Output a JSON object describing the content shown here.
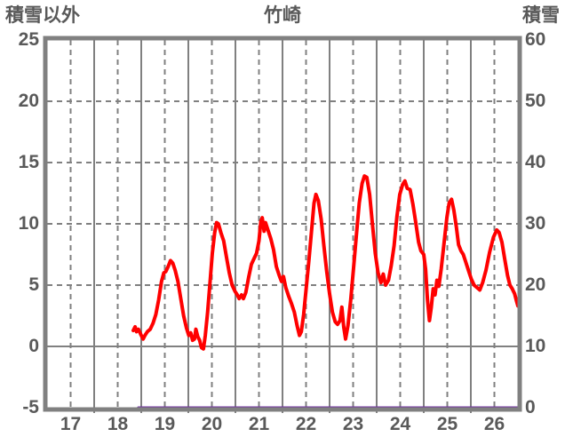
{
  "header": {
    "left_axis_title": "積雪以外",
    "chart_title": "竹崎",
    "right_axis_title": "積雪"
  },
  "colors": {
    "background": "#ffffff",
    "grid": "#808080",
    "border": "#808080",
    "text": "#595959",
    "series_main": "#ff0000",
    "series_snow": "#7030a0"
  },
  "chart_data": {
    "type": "line",
    "title": "竹崎",
    "grid": "on",
    "legend": "none",
    "left_axis": {
      "label": "積雪以外",
      "min": -5,
      "max": 25,
      "ticks": [
        25,
        20,
        15,
        10,
        5,
        0,
        -5
      ],
      "solid_line_at": 0,
      "dashed_lines_at": [
        20,
        15,
        10,
        5
      ]
    },
    "right_axis": {
      "label": "積雪",
      "min": 0,
      "max": 60,
      "ticks": [
        60,
        50,
        40,
        30,
        20,
        10,
        0
      ]
    },
    "x_axis": {
      "min": 17,
      "max": 27,
      "tick_labels": [
        "17",
        "18",
        "19",
        "20",
        "21",
        "22",
        "23",
        "24",
        "25",
        "26"
      ],
      "solid_gridlines_at": [
        18,
        19,
        20,
        21,
        22,
        23,
        24,
        25,
        26
      ],
      "dashed_gridlines_at": [
        17.5,
        18.5,
        19.5,
        20.5,
        21.5,
        22.5,
        23.5,
        24.5,
        25.5,
        26.5
      ]
    },
    "series": [
      {
        "name": "積雪以外",
        "axis": "left",
        "color": "#ff0000",
        "width": 4,
        "points": [
          [
            18.83,
            1.3
          ],
          [
            18.87,
            1.6
          ],
          [
            18.9,
            1.2
          ],
          [
            18.94,
            1.4
          ],
          [
            19.0,
            0.9
          ],
          [
            19.04,
            0.6
          ],
          [
            19.08,
            0.9
          ],
          [
            19.13,
            1.2
          ],
          [
            19.19,
            1.4
          ],
          [
            19.25,
            1.9
          ],
          [
            19.31,
            2.6
          ],
          [
            19.37,
            3.8
          ],
          [
            19.43,
            5.3
          ],
          [
            19.48,
            6.0
          ],
          [
            19.52,
            6.1
          ],
          [
            19.57,
            6.5
          ],
          [
            19.62,
            7.0
          ],
          [
            19.67,
            6.8
          ],
          [
            19.72,
            6.2
          ],
          [
            19.78,
            5.3
          ],
          [
            19.84,
            3.9
          ],
          [
            19.9,
            2.5
          ],
          [
            19.96,
            1.5
          ],
          [
            20.01,
            0.9
          ],
          [
            20.05,
            1.1
          ],
          [
            20.09,
            0.5
          ],
          [
            20.13,
            0.6
          ],
          [
            20.16,
            1.4
          ],
          [
            20.2,
            0.8
          ],
          [
            20.24,
            0.5
          ],
          [
            20.28,
            -0.1
          ],
          [
            20.32,
            -0.2
          ],
          [
            20.36,
            0.9
          ],
          [
            20.41,
            2.8
          ],
          [
            20.46,
            5.2
          ],
          [
            20.51,
            7.6
          ],
          [
            20.56,
            9.3
          ],
          [
            20.6,
            10.1
          ],
          [
            20.64,
            10.0
          ],
          [
            20.69,
            9.3
          ],
          [
            20.75,
            8.6
          ],
          [
            20.81,
            7.3
          ],
          [
            20.87,
            6.0
          ],
          [
            20.93,
            5.0
          ],
          [
            20.99,
            4.5
          ],
          [
            21.04,
            4.2
          ],
          [
            21.08,
            3.9
          ],
          [
            21.13,
            4.2
          ],
          [
            21.17,
            3.9
          ],
          [
            21.22,
            4.4
          ],
          [
            21.28,
            5.6
          ],
          [
            21.34,
            6.7
          ],
          [
            21.4,
            7.2
          ],
          [
            21.45,
            7.6
          ],
          [
            21.5,
            8.6
          ],
          [
            21.54,
            10.2
          ],
          [
            21.57,
            10.5
          ],
          [
            21.61,
            9.4
          ],
          [
            21.64,
            10.1
          ],
          [
            21.69,
            9.5
          ],
          [
            21.75,
            8.8
          ],
          [
            21.81,
            7.9
          ],
          [
            21.87,
            6.5
          ],
          [
            21.93,
            5.8
          ],
          [
            21.98,
            5.3
          ],
          [
            22.02,
            5.7
          ],
          [
            22.07,
            4.8
          ],
          [
            22.13,
            4.1
          ],
          [
            22.19,
            3.5
          ],
          [
            22.25,
            2.8
          ],
          [
            22.31,
            1.7
          ],
          [
            22.36,
            0.9
          ],
          [
            22.4,
            1.2
          ],
          [
            22.45,
            2.6
          ],
          [
            22.5,
            4.6
          ],
          [
            22.56,
            7.0
          ],
          [
            22.62,
            9.6
          ],
          [
            22.67,
            11.7
          ],
          [
            22.71,
            12.4
          ],
          [
            22.76,
            11.9
          ],
          [
            22.82,
            10.4
          ],
          [
            22.88,
            8.2
          ],
          [
            22.94,
            6.1
          ],
          [
            23.0,
            4.3
          ],
          [
            23.06,
            2.8
          ],
          [
            23.12,
            2.0
          ],
          [
            23.17,
            1.8
          ],
          [
            23.22,
            2.1
          ],
          [
            23.26,
            3.2
          ],
          [
            23.3,
            1.6
          ],
          [
            23.34,
            0.6
          ],
          [
            23.39,
            1.7
          ],
          [
            23.45,
            3.8
          ],
          [
            23.51,
            6.4
          ],
          [
            23.57,
            9.1
          ],
          [
            23.63,
            11.7
          ],
          [
            23.69,
            13.3
          ],
          [
            23.74,
            13.9
          ],
          [
            23.79,
            13.8
          ],
          [
            23.85,
            12.4
          ],
          [
            23.91,
            10.0
          ],
          [
            23.97,
            7.6
          ],
          [
            24.03,
            6.0
          ],
          [
            24.09,
            5.2
          ],
          [
            24.14,
            5.9
          ],
          [
            24.19,
            5.0
          ],
          [
            24.25,
            5.4
          ],
          [
            24.31,
            6.6
          ],
          [
            24.37,
            8.2
          ],
          [
            24.43,
            10.6
          ],
          [
            24.49,
            12.4
          ],
          [
            24.55,
            13.2
          ],
          [
            24.6,
            13.5
          ],
          [
            24.65,
            12.9
          ],
          [
            24.71,
            12.8
          ],
          [
            24.77,
            11.6
          ],
          [
            24.83,
            10.1
          ],
          [
            24.89,
            8.5
          ],
          [
            24.94,
            7.8
          ],
          [
            25.0,
            7.5
          ],
          [
            25.04,
            6.3
          ],
          [
            25.08,
            3.8
          ],
          [
            25.12,
            2.1
          ],
          [
            25.16,
            3.2
          ],
          [
            25.2,
            4.7
          ],
          [
            25.24,
            4.2
          ],
          [
            25.28,
            5.4
          ],
          [
            25.32,
            4.9
          ],
          [
            25.37,
            6.3
          ],
          [
            25.43,
            8.4
          ],
          [
            25.49,
            10.5
          ],
          [
            25.54,
            11.7
          ],
          [
            25.59,
            12.0
          ],
          [
            25.64,
            11.1
          ],
          [
            25.69,
            9.8
          ],
          [
            25.74,
            8.3
          ],
          [
            25.79,
            7.8
          ],
          [
            25.84,
            7.5
          ],
          [
            25.89,
            6.9
          ],
          [
            25.95,
            6.2
          ],
          [
            26.01,
            5.5
          ],
          [
            26.07,
            5.0
          ],
          [
            26.13,
            4.8
          ],
          [
            26.19,
            4.6
          ],
          [
            26.25,
            5.2
          ],
          [
            26.32,
            6.2
          ],
          [
            26.4,
            7.7
          ],
          [
            26.48,
            8.9
          ],
          [
            26.55,
            9.5
          ],
          [
            26.6,
            9.3
          ],
          [
            26.66,
            8.5
          ],
          [
            26.72,
            7.1
          ],
          [
            26.78,
            5.8
          ],
          [
            26.83,
            5.0
          ],
          [
            26.88,
            4.7
          ],
          [
            26.93,
            4.3
          ],
          [
            26.97,
            3.7
          ],
          [
            27.0,
            3.3
          ]
        ]
      },
      {
        "name": "積雪",
        "axis": "right",
        "color": "#7030a0",
        "width": 3,
        "points": [
          [
            18.94,
            0
          ],
          [
            27.0,
            0
          ]
        ]
      }
    ]
  }
}
